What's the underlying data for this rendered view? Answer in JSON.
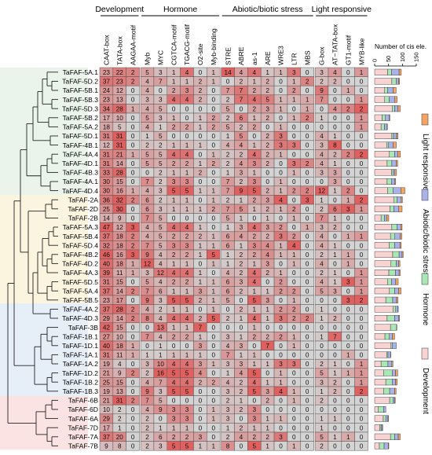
{
  "groups": [
    {
      "name": "Development",
      "cols": [
        0,
        1,
        2
      ]
    },
    {
      "name": "Hormone",
      "cols": [
        3,
        4,
        5,
        6,
        7,
        8
      ]
    },
    {
      "name": "Abiotic/biotic stress",
      "cols": [
        9,
        10,
        11,
        12,
        13,
        14,
        15
      ]
    },
    {
      "name": "Light responsive",
      "cols": [
        16,
        17,
        18,
        19
      ]
    }
  ],
  "columns": [
    "CAAT-box",
    "TATA-box",
    "AAGAA-motif",
    "Myb",
    "MYC",
    "CGTCA-motif",
    "TGACG-motif",
    "O2-site",
    "Myb-binding",
    "STRE",
    "ABRE",
    "as-1",
    "ARE",
    "WRE3",
    "LTR",
    "MBS",
    "G-box",
    "AT~TATA-box",
    "GT1-motif",
    "MYB-like"
  ],
  "genes": [
    "TaFAF-5A.1",
    "TaFAF-5D.2",
    "TaFAF-5B.1",
    "TaFAF-5B.3",
    "TaFAF-5D.3",
    "TaFAF-5B.2",
    "TaFAF-5A.2",
    "TaFAF-5D.1",
    "TaFAF-4B.1",
    "TaFAF-4A.4",
    "TaFAF-4D.1",
    "TaFAF-4B.3",
    "TaFAF-4A.1",
    "TaFAF-4D.4",
    "TaFAF-2A",
    "TaFAF-2D",
    "TaFAF-2B",
    "TaFAF-5A.3",
    "TaFAF-5B.4",
    "TaFAF-5D.4",
    "TaFAF-4B.2",
    "TaFAF-4D.2",
    "TaFAF-4A.3",
    "TaFAF-5D.5",
    "TaFAF-5A.4",
    "TaFAF-5B.5",
    "TaFAF-4A.2",
    "TaFAF-4D.3",
    "TaFAF-3B",
    "TaFAF-1B.1",
    "TaFAF-1D.1",
    "TaFAF-1A.1",
    "TaFAF-1A.2",
    "TaFAF-1D.2",
    "TaFAF-1B.2",
    "TaFAF-1B.3",
    "TaFAF-6B",
    "TaFAF-6D",
    "TaFAF-6A",
    "TaFAF-7D",
    "TaFAF-7A",
    "TaFAF-7B"
  ],
  "matrix": [
    [
      23,
      22,
      2,
      5,
      3,
      1,
      4,
      0,
      1,
      14,
      4,
      4,
      1,
      1,
      3,
      0,
      3,
      4,
      0,
      1
    ],
    [
      37,
      23,
      2,
      4,
      7,
      1,
      1,
      2,
      1,
      0,
      2,
      1,
      2,
      0,
      1,
      2,
      2,
      2,
      0,
      0
    ],
    [
      24,
      12,
      0,
      4,
      0,
      2,
      3,
      2,
      0,
      7,
      7,
      2,
      2,
      0,
      2,
      0,
      9,
      0,
      1,
      0
    ],
    [
      23,
      13,
      0,
      3,
      3,
      4,
      4,
      2,
      0,
      2,
      7,
      4,
      5,
      1,
      1,
      1,
      7,
      0,
      0,
      1
    ],
    [
      34,
      28,
      1,
      4,
      5,
      0,
      0,
      0,
      0,
      5,
      0,
      2,
      3,
      1,
      0,
      1,
      0,
      4,
      2,
      2
    ],
    [
      17,
      10,
      0,
      5,
      3,
      1,
      0,
      1,
      2,
      2,
      6,
      1,
      2,
      0,
      1,
      2,
      1,
      0,
      0,
      1
    ],
    [
      18,
      5,
      0,
      4,
      1,
      2,
      2,
      1,
      2,
      5,
      2,
      2,
      0,
      1,
      0,
      0,
      0,
      0,
      0,
      1
    ],
    [
      31,
      31,
      0,
      1,
      5,
      0,
      0,
      0,
      0,
      1,
      5,
      0,
      2,
      3,
      0,
      0,
      4,
      1,
      0,
      0
    ],
    [
      12,
      31,
      0,
      2,
      2,
      1,
      1,
      1,
      0,
      4,
      4,
      1,
      2,
      3,
      3,
      0,
      3,
      8,
      0,
      0
    ],
    [
      31,
      21,
      1,
      5,
      5,
      4,
      4,
      0,
      1,
      2,
      2,
      4,
      2,
      1,
      0,
      0,
      4,
      2,
      2,
      2
    ],
    [
      31,
      14,
      0,
      5,
      5,
      2,
      2,
      1,
      2,
      2,
      4,
      3,
      2,
      0,
      3,
      2,
      4,
      1,
      0,
      0
    ],
    [
      33,
      28,
      0,
      0,
      2,
      1,
      1,
      2,
      0,
      1,
      3,
      1,
      0,
      0,
      1,
      0,
      3,
      3,
      0,
      0
    ],
    [
      30,
      15,
      0,
      7,
      2,
      3,
      3,
      0,
      0,
      7,
      2,
      3,
      0,
      1,
      0,
      0,
      0,
      3,
      0,
      0
    ],
    [
      30,
      16,
      1,
      4,
      3,
      5,
      5,
      1,
      1,
      7,
      9,
      5,
      2,
      1,
      2,
      2,
      12,
      1,
      2,
      0
    ],
    [
      36,
      32,
      2,
      6,
      2,
      1,
      1,
      0,
      1,
      2,
      1,
      2,
      3,
      4,
      0,
      3,
      1,
      0,
      1,
      2
    ],
    [
      25,
      30,
      0,
      6,
      3,
      1,
      1,
      1,
      2,
      7,
      5,
      1,
      2,
      1,
      2,
      0,
      2,
      6,
      3,
      1
    ],
    [
      14,
      9,
      0,
      7,
      5,
      0,
      0,
      0,
      0,
      5,
      1,
      0,
      1,
      0,
      1,
      0,
      7,
      1,
      0,
      0
    ],
    [
      47,
      12,
      3,
      4,
      5,
      4,
      4,
      1,
      0,
      1,
      3,
      4,
      3,
      2,
      0,
      1,
      3,
      2,
      0,
      0
    ],
    [
      37,
      18,
      2,
      4,
      5,
      2,
      2,
      2,
      1,
      6,
      4,
      2,
      2,
      3,
      2,
      0,
      4,
      0,
      1,
      1
    ],
    [
      32,
      18,
      2,
      7,
      5,
      3,
      3,
      1,
      1,
      6,
      1,
      3,
      4,
      1,
      4,
      0,
      4,
      1,
      0,
      0
    ],
    [
      46,
      16,
      3,
      9,
      4,
      2,
      2,
      1,
      5,
      1,
      2,
      2,
      4,
      1,
      1,
      0,
      2,
      1,
      1,
      0
    ],
    [
      40,
      18,
      1,
      12,
      4,
      1,
      1,
      0,
      1,
      1,
      2,
      1,
      3,
      0,
      1,
      0,
      4,
      0,
      1,
      0
    ],
    [
      39,
      11,
      1,
      3,
      12,
      4,
      4,
      1,
      0,
      4,
      2,
      4,
      2,
      1,
      0,
      0,
      2,
      1,
      0,
      1
    ],
    [
      31,
      15,
      0,
      5,
      4,
      2,
      2,
      1,
      1,
      6,
      3,
      4,
      0,
      2,
      0,
      0,
      4,
      1,
      3,
      1
    ],
    [
      37,
      14,
      2,
      7,
      6,
      1,
      1,
      3,
      1,
      6,
      2,
      1,
      1,
      2,
      2,
      0,
      5,
      3,
      0,
      1
    ],
    [
      23,
      17,
      0,
      9,
      3,
      5,
      5,
      2,
      1,
      5,
      0,
      5,
      3,
      0,
      1,
      0,
      0,
      0,
      3,
      2
    ],
    [
      37,
      28,
      2,
      4,
      2,
      1,
      1,
      0,
      1,
      0,
      2,
      1,
      1,
      2,
      2,
      0,
      1,
      0,
      0,
      0
    ],
    [
      29,
      14,
      2,
      8,
      4,
      4,
      4,
      2,
      5,
      2,
      1,
      4,
      1,
      3,
      2,
      2,
      1,
      2,
      0,
      0
    ],
    [
      42,
      15,
      0,
      0,
      13,
      1,
      1,
      7,
      0,
      0,
      0,
      1,
      0,
      0,
      0,
      0,
      0,
      0,
      0,
      0
    ],
    [
      27,
      10,
      0,
      7,
      4,
      2,
      2,
      1,
      0,
      3,
      1,
      2,
      2,
      2,
      1,
      0,
      1,
      7,
      0,
      0
    ],
    [
      40,
      18,
      1,
      0,
      1,
      0,
      0,
      3,
      0,
      4,
      3,
      0,
      7,
      0,
      1,
      0,
      0,
      0,
      0,
      0
    ],
    [
      31,
      11,
      1,
      1,
      1,
      1,
      1,
      1,
      0,
      7,
      1,
      1,
      0,
      0,
      0,
      0,
      0,
      0,
      1,
      0
    ],
    [
      19,
      4,
      0,
      3,
      10,
      4,
      4,
      3,
      1,
      3,
      3,
      1,
      1,
      3,
      3,
      0,
      2,
      1,
      0,
      1
    ],
    [
      21,
      9,
      2,
      2,
      16,
      5,
      5,
      4,
      0,
      1,
      4,
      5,
      0,
      1,
      0,
      0,
      5,
      1,
      1,
      1
    ],
    [
      25,
      15,
      0,
      4,
      7,
      4,
      4,
      2,
      2,
      4,
      2,
      4,
      1,
      1,
      0,
      0,
      3,
      2,
      0,
      1
    ],
    [
      19,
      13,
      0,
      9,
      3,
      5,
      5,
      0,
      0,
      3,
      2,
      5,
      3,
      4,
      1,
      0,
      1,
      2,
      0,
      2
    ],
    [
      21,
      31,
      2,
      7,
      5,
      0,
      0,
      0,
      0,
      2,
      1,
      0,
      2,
      0,
      1,
      0,
      2,
      0,
      0,
      0
    ],
    [
      10,
      2,
      0,
      4,
      9,
      3,
      3,
      0,
      1,
      3,
      2,
      3,
      0,
      0,
      0,
      0,
      0,
      0,
      0,
      0
    ],
    [
      29,
      2,
      0,
      2,
      0,
      3,
      3,
      0,
      1,
      3,
      0,
      3,
      1,
      1,
      0,
      0,
      1,
      1,
      0,
      0
    ],
    [
      17,
      1,
      0,
      2,
      1,
      1,
      1,
      0,
      0,
      1,
      2,
      1,
      1,
      0,
      0,
      0,
      1,
      0,
      0,
      0
    ],
    [
      37,
      20,
      0,
      2,
      6,
      2,
      2,
      3,
      0,
      2,
      4,
      2,
      2,
      3,
      0,
      0,
      5,
      1,
      1,
      0
    ],
    [
      9,
      8,
      0,
      2,
      3,
      5,
      5,
      1,
      1,
      8,
      0,
      5,
      1,
      0,
      1,
      0,
      2,
      0,
      0,
      0
    ]
  ],
  "bar_axis": {
    "title": "Number of cis ele.",
    "ticks": [
      "0",
      "50",
      "100",
      "150"
    ],
    "range": [
      0,
      150
    ]
  },
  "legend": [
    {
      "label": "Light responsive",
      "color": "#f4a460"
    },
    {
      "label": "Abiotic/biotic stress",
      "color": "#a9b3ea"
    },
    {
      "label": "Hormone",
      "color": "#a9e8b5"
    },
    {
      "label": "Development",
      "color": "#f9d2d2"
    }
  ],
  "colors": {
    "cell_max": "#e06060",
    "cell_min": "#d3d3d3",
    "grid": "#555555"
  }
}
